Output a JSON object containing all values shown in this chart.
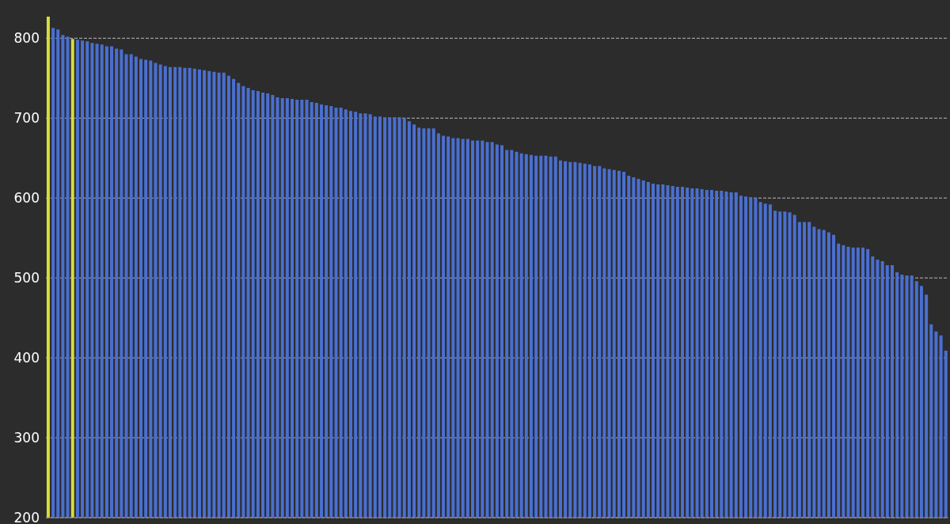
{
  "chart_data": {
    "type": "bar",
    "categories": [
      null,
      null,
      null,
      null,
      null,
      null,
      null,
      null,
      null,
      null,
      null,
      null,
      null,
      null,
      null,
      null,
      null,
      null,
      null,
      null,
      null,
      null,
      null,
      null,
      null,
      null,
      null,
      null,
      null,
      null,
      null,
      null,
      null,
      null,
      null,
      null,
      null,
      null,
      null,
      null,
      null,
      null,
      null,
      null,
      null,
      null,
      null,
      null,
      null,
      null,
      null,
      null,
      null,
      null,
      null,
      null,
      null,
      null,
      null,
      null,
      null,
      null,
      null,
      null,
      null,
      null,
      null,
      null,
      null,
      null,
      null,
      null,
      null,
      null,
      null,
      null,
      null,
      null,
      null,
      null,
      null,
      null,
      null,
      null,
      null,
      null,
      null,
      null,
      null,
      null,
      null,
      null,
      null,
      null,
      null,
      null,
      null,
      null,
      null,
      null,
      null,
      null,
      null,
      null,
      null,
      null,
      null,
      null,
      null,
      null,
      null,
      null,
      null,
      null,
      null,
      null,
      null,
      null,
      null,
      null,
      null,
      null,
      null,
      null,
      null,
      null,
      null,
      null,
      null,
      null,
      null,
      null,
      null,
      null,
      null,
      null,
      null,
      null,
      null,
      null,
      null,
      null,
      null,
      null,
      null,
      null,
      null,
      null,
      null,
      null,
      null,
      null,
      null,
      null,
      null,
      null,
      null,
      null,
      null,
      null,
      null,
      null,
      null,
      null,
      null,
      null,
      null,
      null,
      null,
      null,
      null,
      null,
      null,
      null,
      null,
      null,
      null,
      null,
      null,
      null,
      null,
      null,
      null,
      null,
      null
    ],
    "values": [
      827,
      813,
      811,
      804,
      802,
      799,
      798,
      797,
      796,
      794,
      793,
      792,
      790,
      790,
      787,
      786,
      780,
      780,
      777,
      774,
      773,
      772,
      769,
      767,
      765,
      764,
      764,
      764,
      763,
      763,
      762,
      761,
      760,
      759,
      758,
      757,
      757,
      753,
      749,
      744,
      740,
      738,
      735,
      734,
      732,
      731,
      729,
      726,
      725,
      725,
      724,
      723,
      723,
      723,
      720,
      719,
      717,
      716,
      715,
      713,
      713,
      711,
      709,
      708,
      706,
      706,
      705,
      702,
      702,
      701,
      701,
      701,
      701,
      700,
      696,
      692,
      688,
      687,
      687,
      687,
      681,
      678,
      677,
      675,
      675,
      674,
      674,
      672,
      672,
      672,
      670,
      670,
      667,
      666,
      660,
      660,
      658,
      656,
      655,
      654,
      653,
      653,
      653,
      652,
      652,
      647,
      646,
      645,
      645,
      644,
      643,
      642,
      640,
      640,
      637,
      636,
      635,
      634,
      633,
      628,
      626,
      624,
      622,
      620,
      618,
      617,
      617,
      616,
      615,
      614,
      614,
      613,
      612,
      612,
      611,
      610,
      610,
      609,
      609,
      608,
      607,
      607,
      603,
      602,
      601,
      600,
      595,
      593,
      592,
      584,
      583,
      583,
      582,
      579,
      570,
      570,
      570,
      564,
      561,
      560,
      557,
      554,
      543,
      541,
      539,
      538,
      538,
      538,
      536,
      527,
      523,
      521,
      516,
      516,
      507,
      504,
      503,
      503,
      496,
      490,
      479,
      442,
      433,
      428,
      409
    ],
    "colors": [
      "#d8dc3c",
      "#4a6fd0",
      "#4a6fd0",
      "#4a6fd0",
      "#4a6fd0",
      "#d8dc3c",
      "#4a6fd0",
      "#4a6fd0",
      "#4a6fd0",
      "#4a6fd0",
      "#4a6fd0",
      "#4a6fd0",
      "#4a6fd0",
      "#4a6fd0",
      "#4a6fd0",
      "#4a6fd0",
      "#4a6fd0",
      "#4a6fd0",
      "#4a6fd0",
      "#4a6fd0",
      "#4a6fd0",
      "#4a6fd0",
      "#4a6fd0",
      "#4a6fd0",
      "#4a6fd0",
      "#4a6fd0",
      "#4a6fd0",
      "#4a6fd0",
      "#4a6fd0",
      "#4a6fd0",
      "#4a6fd0",
      "#4a6fd0",
      "#4a6fd0",
      "#4a6fd0",
      "#4a6fd0",
      "#4a6fd0",
      "#4a6fd0",
      "#4a6fd0",
      "#4a6fd0",
      "#4a6fd0",
      "#4a6fd0",
      "#4a6fd0",
      "#4a6fd0",
      "#4a6fd0",
      "#4a6fd0",
      "#4a6fd0",
      "#4a6fd0",
      "#4a6fd0",
      "#4a6fd0",
      "#4a6fd0",
      "#4a6fd0",
      "#4a6fd0",
      "#4a6fd0",
      "#4a6fd0",
      "#4a6fd0",
      "#4a6fd0",
      "#4a6fd0",
      "#4a6fd0",
      "#4a6fd0",
      "#4a6fd0",
      "#4a6fd0",
      "#4a6fd0",
      "#4a6fd0",
      "#4a6fd0",
      "#4a6fd0",
      "#4a6fd0",
      "#4a6fd0",
      "#4a6fd0",
      "#4a6fd0",
      "#4a6fd0",
      "#4a6fd0",
      "#4a6fd0",
      "#4a6fd0",
      "#4a6fd0",
      "#4a6fd0",
      "#4a6fd0",
      "#4a6fd0",
      "#4a6fd0",
      "#4a6fd0",
      "#4a6fd0",
      "#4a6fd0",
      "#4a6fd0",
      "#4a6fd0",
      "#4a6fd0",
      "#4a6fd0",
      "#4a6fd0",
      "#4a6fd0",
      "#4a6fd0",
      "#4a6fd0",
      "#4a6fd0",
      "#4a6fd0",
      "#4a6fd0",
      "#4a6fd0",
      "#4a6fd0",
      "#4a6fd0",
      "#4a6fd0",
      "#4a6fd0",
      "#4a6fd0",
      "#4a6fd0",
      "#4a6fd0",
      "#4a6fd0",
      "#4a6fd0",
      "#4a6fd0",
      "#4a6fd0",
      "#4a6fd0",
      "#4a6fd0",
      "#4a6fd0",
      "#4a6fd0",
      "#4a6fd0",
      "#4a6fd0",
      "#4a6fd0",
      "#4a6fd0",
      "#4a6fd0",
      "#4a6fd0",
      "#4a6fd0",
      "#4a6fd0",
      "#4a6fd0",
      "#4a6fd0",
      "#4a6fd0",
      "#4a6fd0",
      "#4a6fd0",
      "#4a6fd0",
      "#4a6fd0",
      "#4a6fd0",
      "#4a6fd0",
      "#4a6fd0",
      "#4a6fd0",
      "#4a6fd0",
      "#4a6fd0",
      "#4a6fd0",
      "#4a6fd0",
      "#4a6fd0",
      "#4a6fd0",
      "#4a6fd0",
      "#4a6fd0",
      "#4a6fd0",
      "#4a6fd0",
      "#4a6fd0",
      "#4a6fd0",
      "#4a6fd0",
      "#4a6fd0",
      "#4a6fd0",
      "#4a6fd0",
      "#4a6fd0",
      "#4a6fd0",
      "#4a6fd0",
      "#4a6fd0",
      "#4a6fd0",
      "#4a6fd0",
      "#4a6fd0",
      "#4a6fd0",
      "#4a6fd0",
      "#4a6fd0",
      "#4a6fd0",
      "#4a6fd0",
      "#4a6fd0",
      "#4a6fd0",
      "#4a6fd0",
      "#4a6fd0",
      "#4a6fd0",
      "#4a6fd0",
      "#4a6fd0",
      "#4a6fd0",
      "#4a6fd0",
      "#4a6fd0",
      "#4a6fd0",
      "#4a6fd0",
      "#4a6fd0",
      "#4a6fd0",
      "#4a6fd0",
      "#4a6fd0",
      "#4a6fd0",
      "#4a6fd0",
      "#4a6fd0",
      "#4a6fd0",
      "#4a6fd0",
      "#4a6fd0",
      "#4a6fd0",
      "#4a6fd0",
      "#4a6fd0",
      "#4a6fd0",
      "#4a6fd0",
      "#4a6fd0",
      "#4a6fd0",
      "#4a6fd0"
    ],
    "ylim": [
      200,
      830
    ],
    "yticks": [
      200,
      300,
      400,
      500,
      600,
      700,
      800
    ],
    "grid": "y"
  }
}
